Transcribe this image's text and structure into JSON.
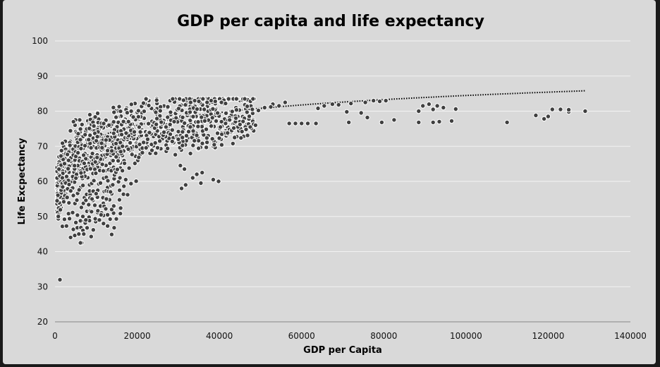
{
  "chart_data": {
    "type": "scatter",
    "title": "GDP per capita and life expectancy",
    "xlabel": "GDP per Capita",
    "ylabel": "Life Excpectancy",
    "xlim": [
      0,
      140000
    ],
    "ylim": [
      20,
      100
    ],
    "xticks": [
      "0",
      "20000",
      "40000",
      "60000",
      "80000",
      "100000",
      "120000",
      "140000"
    ],
    "yticks": [
      "20",
      "30",
      "40",
      "50",
      "60",
      "70",
      "80",
      "90",
      "100"
    ],
    "grid": true,
    "legend": "none",
    "trendline": {
      "type": "logarithmic",
      "style": "dotted",
      "x": [
        1000,
        129000
      ],
      "y": [
        60.2,
        85.8
      ]
    },
    "series": [
      {
        "points": [
          [
            1200,
            32
          ],
          [
            30500,
            64.5
          ],
          [
            31500,
            63.5
          ],
          [
            30800,
            58
          ],
          [
            31800,
            59
          ],
          [
            33500,
            61
          ],
          [
            34500,
            62
          ],
          [
            35500,
            59.5
          ],
          [
            35800,
            62.5
          ],
          [
            38500,
            60.5
          ],
          [
            39800,
            60
          ],
          [
            11800,
            48
          ],
          [
            12800,
            50.5
          ],
          [
            13800,
            52
          ],
          [
            14300,
            53
          ],
          [
            12500,
            55
          ],
          [
            13500,
            57
          ],
          [
            15800,
            61
          ],
          [
            17200,
            60.5
          ],
          [
            6500,
            42.5
          ],
          [
            7000,
            45
          ],
          [
            7500,
            49
          ],
          [
            6200,
            42.5
          ],
          [
            9000,
            55
          ],
          [
            10000,
            56.5
          ],
          [
            11200,
            50.5
          ],
          [
            57000,
            76.5
          ],
          [
            58500,
            76.5
          ],
          [
            60000,
            76.5
          ],
          [
            61500,
            76.5
          ],
          [
            63500,
            76.5
          ],
          [
            71500,
            76.8
          ],
          [
            79500,
            76.8
          ],
          [
            88500,
            76.8
          ],
          [
            92000,
            76.8
          ],
          [
            93500,
            77
          ],
          [
            96500,
            77.2
          ],
          [
            110000,
            76.8
          ],
          [
            117000,
            78.8
          ],
          [
            119000,
            77.8
          ],
          [
            120000,
            78.5
          ],
          [
            121000,
            80.5
          ],
          [
            123000,
            80.5
          ],
          [
            125000,
            79.8
          ],
          [
            129000,
            80
          ],
          [
            125000,
            80.4
          ],
          [
            88500,
            80
          ],
          [
            89500,
            81.5
          ],
          [
            91000,
            82
          ],
          [
            92000,
            80.5
          ],
          [
            93000,
            81.5
          ],
          [
            94500,
            81
          ],
          [
            97500,
            80.6
          ],
          [
            71000,
            79.8
          ],
          [
            74500,
            79.5
          ],
          [
            76000,
            78.2
          ],
          [
            77500,
            83
          ],
          [
            79000,
            82.8
          ],
          [
            80500,
            83
          ],
          [
            82500,
            77.5
          ],
          [
            72000,
            82.2
          ],
          [
            75500,
            82.5
          ],
          [
            64000,
            80.8
          ],
          [
            65500,
            81.5
          ],
          [
            67500,
            82
          ],
          [
            69000,
            81.8
          ],
          [
            56000,
            82.5
          ],
          [
            53000,
            82
          ],
          [
            51000,
            81
          ],
          [
            48000,
            80.5
          ],
          [
            49500,
            80.2
          ],
          [
            52500,
            81.2
          ],
          [
            54500,
            81.5
          ],
          [
            43000,
            74.5
          ],
          [
            44500,
            75.5
          ],
          [
            45500,
            74.2
          ],
          [
            46500,
            74.8
          ],
          [
            47500,
            75.5
          ],
          [
            48800,
            76
          ],
          [
            41500,
            76.5
          ],
          [
            42500,
            77.5
          ],
          [
            40500,
            77
          ],
          [
            44000,
            78
          ],
          [
            45000,
            76.2
          ],
          [
            42000,
            73.8
          ],
          [
            43500,
            75.2
          ],
          [
            27000,
            75.5
          ],
          [
            28000,
            76.2
          ],
          [
            29000,
            77
          ],
          [
            30000,
            72
          ],
          [
            31000,
            72.5
          ],
          [
            32000,
            73
          ],
          [
            25500,
            71.5
          ],
          [
            26500,
            74
          ],
          [
            34000,
            83
          ],
          [
            36000,
            83.5
          ],
          [
            38000,
            83
          ],
          [
            39000,
            82.8
          ],
          [
            40500,
            82.5
          ],
          [
            41500,
            82.2
          ],
          [
            33000,
            82.5
          ],
          [
            35000,
            82.8
          ],
          [
            37000,
            82.5
          ],
          [
            6000,
            77.5
          ],
          [
            5000,
            77.5
          ],
          [
            4500,
            77
          ]
        ],
        "fill": "#404040",
        "stroke": "#ffffff"
      }
    ]
  }
}
